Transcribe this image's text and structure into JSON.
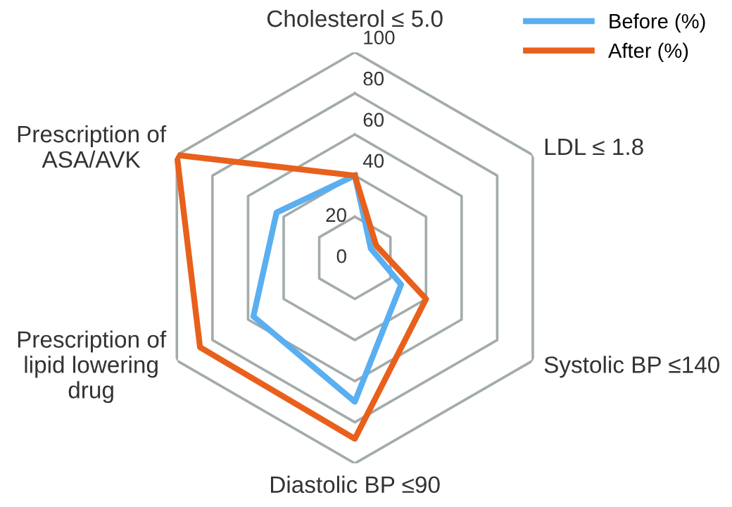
{
  "chart_data": {
    "type": "radar",
    "categories": [
      "Cholesterol ≤ 5.0",
      "LDL ≤ 1.8",
      "Systolic BP ≤140",
      "Diastolic BP ≤90",
      "Prescription of\nlipid lowering\ndrug",
      "Prescription of\nASA/AVK"
    ],
    "series": [
      {
        "name": "Before (%)",
        "color": "#5aaff0",
        "values": [
          40,
          9,
          26,
          70,
          57,
          44
        ]
      },
      {
        "name": "After (%)",
        "color": "#e8601c",
        "values": [
          40,
          12,
          40,
          88,
          87,
          100
        ]
      }
    ],
    "ylim": [
      0,
      100
    ],
    "yticks": [
      0,
      20,
      40,
      60,
      80,
      100
    ],
    "grid": true,
    "legend": "top right"
  }
}
